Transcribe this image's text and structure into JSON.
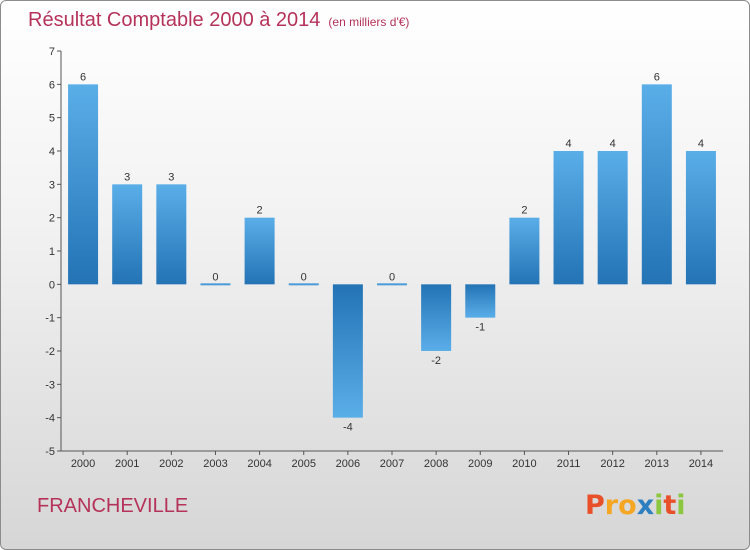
{
  "header": {
    "title": "Résultat Comptable 2000 à 2014",
    "unit": "(en milliers d'€)"
  },
  "footer": {
    "place": "FRANCHEVILLE",
    "logo": "Proxiti"
  },
  "colors": {
    "title": "#b5335a",
    "bar_light": "#5aaee8",
    "bar_dark": "#2373b5",
    "logo_letters": [
      "#e8502a",
      "#f5a623",
      "#f5a623",
      "#2d7fc0",
      "#8dc63f",
      "#e8502a",
      "#8dc63f"
    ]
  },
  "chart_data": {
    "type": "bar",
    "categories": [
      "2000",
      "2001",
      "2002",
      "2003",
      "2004",
      "2005",
      "2006",
      "2007",
      "2008",
      "2009",
      "2010",
      "2011",
      "2012",
      "2013",
      "2014"
    ],
    "values": [
      6,
      3,
      3,
      0,
      2,
      0,
      -4,
      0,
      -2,
      -1,
      2,
      4,
      4,
      6,
      4
    ],
    "labels": [
      "6",
      "3",
      "3",
      "0",
      "2",
      "0",
      "-4",
      "0",
      "-2",
      "-1",
      "2",
      "4",
      "4",
      "6",
      "4"
    ],
    "yticks": [
      7,
      6,
      5,
      4,
      3,
      2,
      1,
      0,
      -1,
      -2,
      -3,
      -4,
      -5
    ],
    "ylim": [
      -5,
      7
    ],
    "grid": false,
    "legend": false
  }
}
